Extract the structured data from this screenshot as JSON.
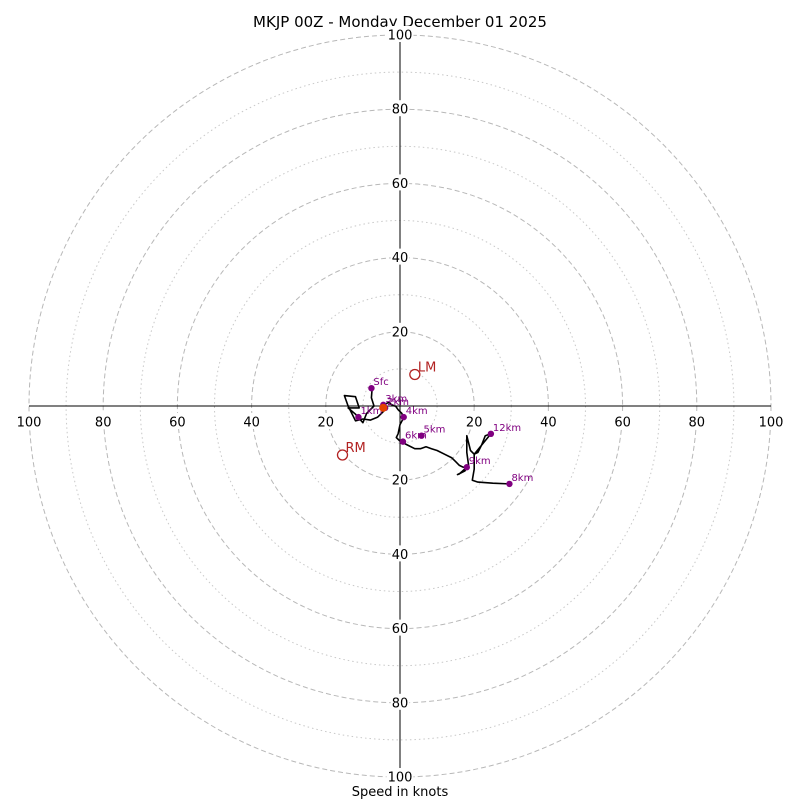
{
  "chart_data": {
    "type": "hodograph",
    "title": "MKJP 00Z - Monday December 01 2025",
    "xlabel": "Speed in knots",
    "max_speed": 100,
    "ring_major": [
      20,
      40,
      60,
      80,
      100
    ],
    "ring_minor": [
      10,
      30,
      50,
      70,
      90
    ],
    "tick_values": [
      20,
      40,
      60,
      80,
      100
    ],
    "trace": [
      [
        -7.5,
        5
      ],
      [
        -7.7,
        2.2
      ],
      [
        -7,
        0
      ],
      [
        -9,
        -2
      ],
      [
        -10,
        -4.5
      ],
      [
        -12,
        -2.2
      ],
      [
        -14,
        -0.5
      ],
      [
        -11,
        -0.5
      ],
      [
        -12,
        2.5
      ],
      [
        -15,
        2.8
      ],
      [
        -14,
        0
      ],
      [
        -12,
        -4
      ],
      [
        -10,
        -3.5
      ],
      [
        -8,
        -3.8
      ],
      [
        -6,
        -3
      ],
      [
        -4,
        -1
      ],
      [
        -4.5,
        0
      ],
      [
        -4,
        0.5
      ],
      [
        -3,
        1
      ],
      [
        -2.5,
        0.5
      ],
      [
        -1.5,
        0
      ],
      [
        -1.2,
        0
      ],
      [
        -0.5,
        -1
      ],
      [
        0.5,
        -2
      ],
      [
        0.8,
        -3.5
      ],
      [
        0,
        -5
      ],
      [
        -0.5,
        -7.5
      ],
      [
        -1,
        -8.5
      ],
      [
        0,
        -9.5
      ],
      [
        2,
        -10.5
      ],
      [
        4,
        -11.5
      ],
      [
        5.5,
        -11.5
      ],
      [
        7,
        -11
      ],
      [
        8.5,
        -11.5
      ],
      [
        10,
        -12
      ],
      [
        12,
        -13
      ],
      [
        14,
        -14
      ],
      [
        15,
        -15
      ],
      [
        16,
        -16
      ],
      [
        17,
        -16.5
      ],
      [
        18,
        -16.5
      ],
      [
        16,
        -18.3
      ],
      [
        15.5,
        -18.5
      ],
      [
        17.5,
        -17.5
      ],
      [
        18.5,
        -16
      ],
      [
        18,
        -12.5
      ],
      [
        18,
        -8
      ],
      [
        19,
        -12
      ],
      [
        20,
        -13
      ],
      [
        21,
        -12.5
      ],
      [
        22,
        -10.5
      ],
      [
        23,
        -8
      ],
      [
        24.5,
        -7.5
      ],
      [
        20,
        -13
      ],
      [
        20,
        -17
      ],
      [
        19.5,
        -20
      ],
      [
        21,
        -20.5
      ],
      [
        25,
        -20.8
      ],
      [
        29.5,
        -21
      ]
    ],
    "height_markers": [
      {
        "label": "Sfc",
        "u": -7.7,
        "v": 4.8
      },
      {
        "label": "1km",
        "u": -11.2,
        "v": -3
      },
      {
        "label": "2km",
        "u": -4,
        "v": -0.5
      },
      {
        "label": "3km",
        "u": -4.5,
        "v": 0.3
      },
      {
        "label": "4km",
        "u": 1,
        "v": -3
      },
      {
        "label": "5km",
        "u": 5.8,
        "v": -8
      },
      {
        "label": "6km",
        "u": 0.8,
        "v": -9.6
      },
      {
        "label": "8km",
        "u": 29.5,
        "v": -21
      },
      {
        "label": "9km",
        "u": 18,
        "v": -16.5
      },
      {
        "label": "12km",
        "u": 24.5,
        "v": -7.5
      }
    ],
    "storm_motion": [
      {
        "label": "LM",
        "u": 4,
        "v": 8.5
      },
      {
        "label": "RM",
        "u": -15.5,
        "v": -13.2
      },
      {
        "label": "",
        "u": -4.5,
        "v": -0.5,
        "color": "#e34000"
      }
    ]
  }
}
